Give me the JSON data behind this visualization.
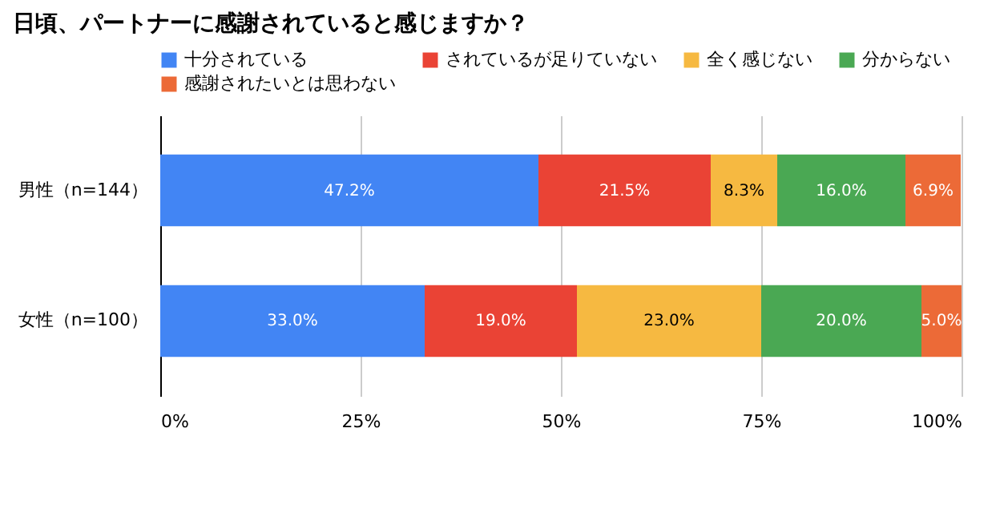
{
  "chart_data": {
    "type": "bar",
    "orientation": "horizontal",
    "stacked": true,
    "title": "日頃、パートナーに感謝されていると感じますか？",
    "categories": [
      "男性（n=144）",
      "女性（n=100）"
    ],
    "series": [
      {
        "name": "十分されている",
        "color": "#4285f4",
        "values": [
          47.2,
          33.0
        ],
        "value_labels": [
          "47.2%",
          "33.0%"
        ]
      },
      {
        "name": "されているが足りていない",
        "color": "#ea4335",
        "values": [
          21.5,
          19.0
        ],
        "value_labels": [
          "21.5%",
          "19.0%"
        ]
      },
      {
        "name": "全く感じない",
        "color": "#f6b941",
        "values": [
          8.3,
          23.0
        ],
        "value_labels": [
          "8.3%",
          "23.0%"
        ]
      },
      {
        "name": "分からない",
        "color": "#4aa853",
        "values": [
          16.0,
          20.0
        ],
        "value_labels": [
          "16.0%",
          "20.0%"
        ]
      },
      {
        "name": "感謝されたいとは思わない",
        "color": "#ec6a37",
        "values": [
          6.9,
          5.0
        ],
        "value_labels": [
          "6.9%",
          "5.0%"
        ]
      }
    ],
    "xlim": [
      0,
      100
    ],
    "xticks": [
      {
        "value": 0,
        "label": "0%"
      },
      {
        "value": 25,
        "label": "25%"
      },
      {
        "value": 50,
        "label": "50%"
      },
      {
        "value": 75,
        "label": "75%"
      },
      {
        "value": 100,
        "label": "100%"
      }
    ],
    "grid": "x",
    "legend": "top"
  }
}
